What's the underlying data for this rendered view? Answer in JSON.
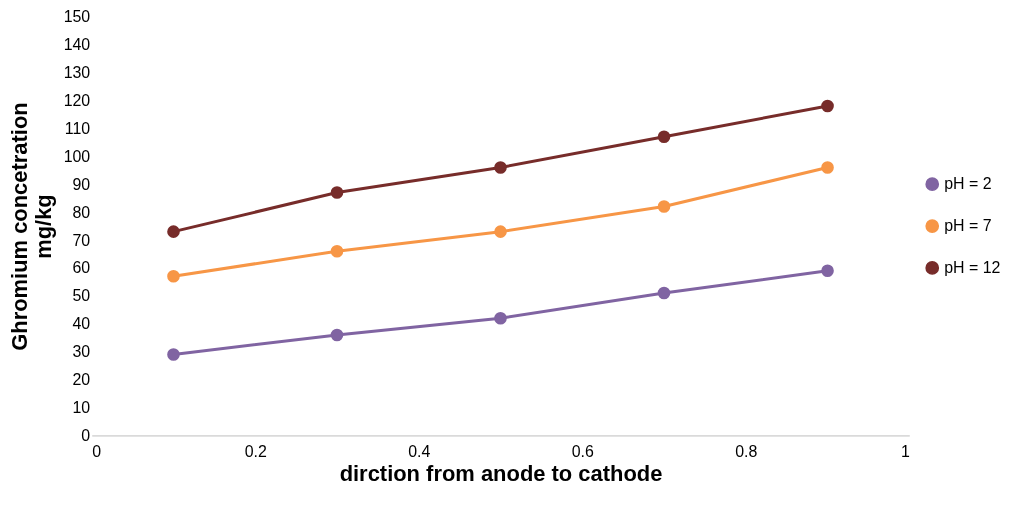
{
  "chart_data": {
    "type": "line",
    "xlabel": "dirction from anode to cathode",
    "ylabel": "Ghromium concetration\nmg/kg",
    "x": [
      0.1,
      0.3,
      0.5,
      0.7,
      0.9
    ],
    "series": [
      {
        "name": "pH = 2",
        "color": "#8064a2",
        "values": [
          29,
          36,
          42,
          51,
          59
        ]
      },
      {
        "name": "pH = 7",
        "color": "#f79646",
        "values": [
          57,
          66,
          73,
          82,
          96
        ]
      },
      {
        "name": "pH = 12",
        "color": "#772c2a",
        "values": [
          73,
          87,
          96,
          107,
          118
        ]
      }
    ],
    "xlim": [
      0,
      1
    ],
    "xticks": [
      0,
      0.2,
      0.4,
      0.6,
      0.8,
      1
    ],
    "ylim": [
      0,
      150
    ],
    "yticks": [
      0,
      10,
      20,
      30,
      40,
      50,
      60,
      70,
      80,
      90,
      100,
      110,
      120,
      130,
      140,
      150
    ],
    "grid": false,
    "legend": "right",
    "marker": "circle",
    "line_style": "solid"
  }
}
